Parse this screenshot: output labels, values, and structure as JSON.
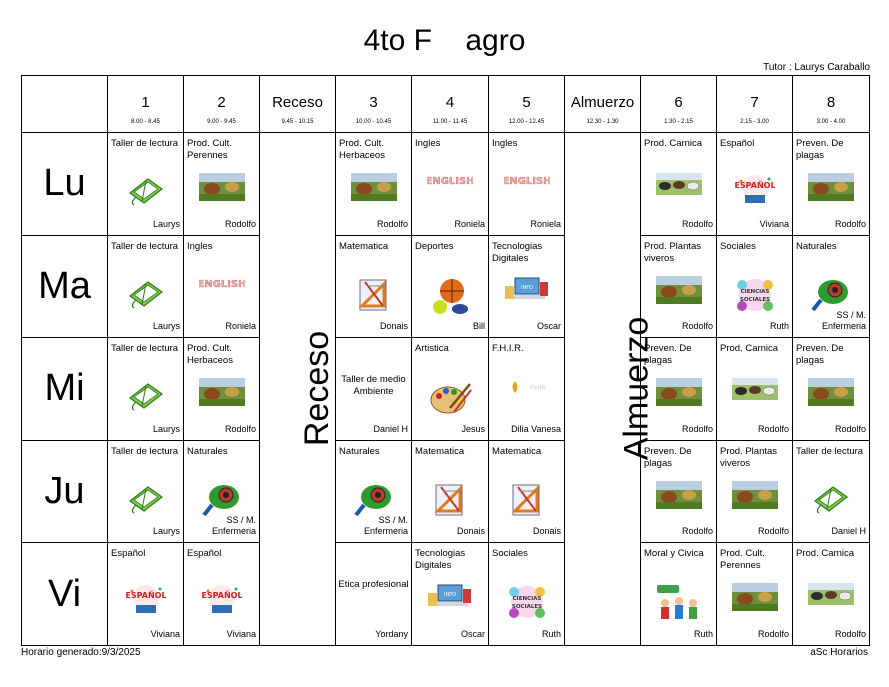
{
  "title": "4to F    agro",
  "tutor": "Tutor : Laurys  Caraballo",
  "footer": {
    "generated": "Horario generado:9/3/2025",
    "brand": "aSc Horarios"
  },
  "headers": [
    {
      "label": "1",
      "time": "8.00 - 8.45"
    },
    {
      "label": "2",
      "time": "9.00 - 9.45"
    },
    {
      "label": "Receso",
      "time": "9.45 - 10.15"
    },
    {
      "label": "3",
      "time": "10.00 - 10.45"
    },
    {
      "label": "4",
      "time": "11.00 - 11.45"
    },
    {
      "label": "5",
      "time": "12.00 - 12.45"
    },
    {
      "label": "Almuerzo",
      "time": "12.30 - 1.30"
    },
    {
      "label": "6",
      "time": "1.30 - 2.15"
    },
    {
      "label": "7",
      "time": "2.15 - 3.00"
    },
    {
      "label": "8",
      "time": "3.00 - 4.00"
    }
  ],
  "break_label": "Receso",
  "lunch_label": "Almuerzo",
  "days": [
    {
      "name": "Lu",
      "cells": [
        {
          "subject": "Taller de lectura",
          "teacher": "Laurys",
          "icon": "book-icon"
        },
        {
          "subject": "Prod. Cult. Perennes",
          "teacher": "Rodolfo",
          "icon": "farm-icon"
        },
        {
          "subject": "Prod. Cult. Herbaceos",
          "teacher": "Rodolfo",
          "icon": "farm-icon"
        },
        {
          "subject": "Ingles",
          "teacher": "Roniela",
          "icon": "english-icon"
        },
        {
          "subject": "Ingles",
          "teacher": "Roniela",
          "icon": "english-icon"
        },
        {
          "subject": "Prod. Carnica",
          "teacher": "Rodolfo",
          "icon": "cattle-icon"
        },
        {
          "subject": "Español",
          "teacher": "Viviana",
          "icon": "espanol-icon"
        },
        {
          "subject": "Preven. De plagas",
          "teacher": "Rodolfo",
          "icon": "farm-icon"
        }
      ]
    },
    {
      "name": "Ma",
      "cells": [
        {
          "subject": "Taller de lectura",
          "teacher": "Laurys",
          "icon": "book-icon"
        },
        {
          "subject": "Ingles",
          "teacher": "Roniela",
          "icon": "english-icon"
        },
        {
          "subject": "Matematica",
          "teacher": "Donais",
          "icon": "math-icon"
        },
        {
          "subject": "Deportes",
          "teacher": "Bill",
          "icon": "sports-balls-icon"
        },
        {
          "subject": "Tecnologias Digitales",
          "teacher": "Oscar",
          "icon": "computer-icon"
        },
        {
          "subject": "Prod. Plantas viveros",
          "teacher": "Rodolfo",
          "icon": "farm-icon"
        },
        {
          "subject": "Sociales",
          "teacher": "Ruth",
          "icon": "social-sciences-icon"
        },
        {
          "subject": "Naturales",
          "teacher": "SS / M. Enfermeria",
          "icon": "nature-science-icon"
        }
      ]
    },
    {
      "name": "Mi",
      "cells": [
        {
          "subject": "Taller de lectura",
          "teacher": "Laurys",
          "icon": "book-icon"
        },
        {
          "subject": "Prod. Cult. Herbaceos",
          "teacher": "Rodolfo",
          "icon": "farm-icon"
        },
        {
          "subject": "Taller de medio Ambiente",
          "teacher": "Daniel H",
          "icon": "",
          "centered": true
        },
        {
          "subject": "Artistica",
          "teacher": "Jesus",
          "icon": "palette-icon"
        },
        {
          "subject": "F.H.I.R.",
          "teacher": "Dilia Vanesa",
          "icon": "faith-icon"
        },
        {
          "subject": "Preven. De plagas",
          "teacher": "Rodolfo",
          "icon": "farm-icon"
        },
        {
          "subject": "Prod. Carnica",
          "teacher": "Rodolfo",
          "icon": "cattle-icon"
        },
        {
          "subject": "Preven. De plagas",
          "teacher": "Rodolfo",
          "icon": "farm-icon"
        }
      ]
    },
    {
      "name": "Ju",
      "cells": [
        {
          "subject": "Taller de lectura",
          "teacher": "Laurys",
          "icon": "book-icon"
        },
        {
          "subject": "Naturales",
          "teacher": "SS / M. Enfermeria",
          "icon": "nature-science-icon"
        },
        {
          "subject": "Naturales",
          "teacher": "SS / M. Enfermeria",
          "icon": "nature-science-icon"
        },
        {
          "subject": "Matematica",
          "teacher": "Donais",
          "icon": "math-icon"
        },
        {
          "subject": "Matematica",
          "teacher": "Donais",
          "icon": "math-icon"
        },
        {
          "subject": "Preven. De plagas",
          "teacher": "Rodolfo",
          "icon": "farm-icon"
        },
        {
          "subject": "Prod. Plantas viveros",
          "teacher": "Rodolfo",
          "icon": "farm-icon"
        },
        {
          "subject": "Taller de lectura",
          "teacher": "Daniel H",
          "icon": "book-icon"
        }
      ]
    },
    {
      "name": "Vi",
      "cells": [
        {
          "subject": "Español",
          "teacher": "Viviana",
          "icon": "espanol-icon"
        },
        {
          "subject": "Español",
          "teacher": "Viviana",
          "icon": "espanol-icon"
        },
        {
          "subject": "Etica profesional",
          "teacher": "Yordany",
          "icon": "",
          "centered": true
        },
        {
          "subject": "Tecnologias Digitales",
          "teacher": "Oscar",
          "icon": "computer-icon"
        },
        {
          "subject": "Sociales",
          "teacher": "Ruth",
          "icon": "social-sciences-icon"
        },
        {
          "subject": "Moral y Civica",
          "teacher": "Ruth",
          "icon": "civics-icon"
        },
        {
          "subject": "Prod. Cult. Perennes",
          "teacher": "Rodolfo",
          "icon": "farm-icon"
        },
        {
          "subject": "Prod. Carnica",
          "teacher": "Rodolfo",
          "icon": "cattle-icon"
        }
      ]
    }
  ]
}
